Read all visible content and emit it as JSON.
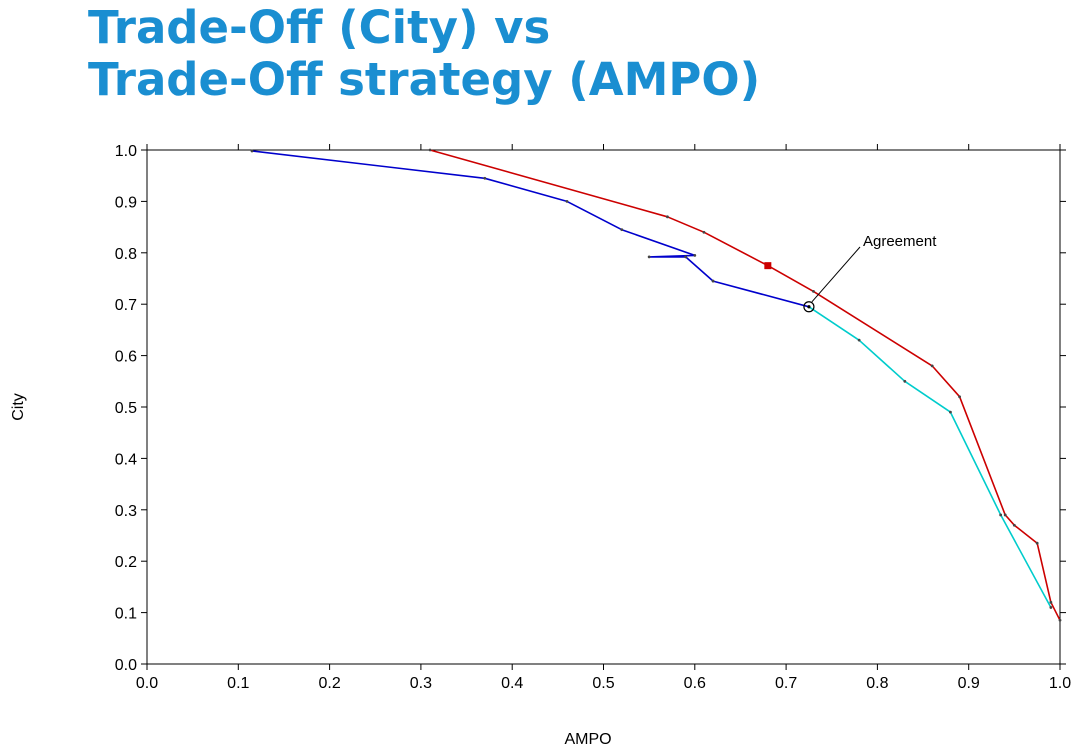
{
  "title_lines": [
    "Trade-Off (City) vs",
    "Trade-Off strategy (AMPO)"
  ],
  "chart_data": {
    "type": "line",
    "title": "",
    "xlabel": "AMPO",
    "ylabel": "City",
    "xlim": [
      0.0,
      1.0
    ],
    "ylim": [
      0.0,
      1.0
    ],
    "xticks": [
      "0.0",
      "0.1",
      "0.2",
      "0.3",
      "0.4",
      "0.5",
      "0.6",
      "0.7",
      "0.8",
      "0.9",
      "1.0"
    ],
    "yticks": [
      "0.0",
      "0.1",
      "0.2",
      "0.3",
      "0.4",
      "0.5",
      "0.6",
      "0.7",
      "0.8",
      "0.9",
      "1.0"
    ],
    "grid": false,
    "series": [
      {
        "color": "#cc0000",
        "points": [
          [
            0.31,
            1.0
          ],
          [
            0.57,
            0.87
          ],
          [
            0.61,
            0.84
          ],
          [
            0.68,
            0.775
          ],
          [
            0.73,
            0.725
          ],
          [
            0.86,
            0.58
          ],
          [
            0.89,
            0.52
          ],
          [
            0.94,
            0.29
          ],
          [
            0.95,
            0.27
          ],
          [
            0.975,
            0.235
          ],
          [
            0.99,
            0.12
          ],
          [
            1.0,
            0.085
          ]
        ]
      },
      {
        "color": "#0000cc",
        "points": [
          [
            0.115,
            0.998
          ],
          [
            0.37,
            0.945
          ],
          [
            0.46,
            0.9
          ],
          [
            0.52,
            0.845
          ],
          [
            0.6,
            0.795
          ],
          [
            0.55,
            0.792
          ],
          [
            0.59,
            0.792
          ],
          [
            0.62,
            0.745
          ],
          [
            0.725,
            0.695
          ]
        ]
      },
      {
        "color": "#00cccc",
        "points": [
          [
            0.725,
            0.695
          ],
          [
            0.78,
            0.63
          ],
          [
            0.83,
            0.55
          ],
          [
            0.88,
            0.49
          ],
          [
            0.935,
            0.29
          ],
          [
            0.99,
            0.11
          ]
        ]
      }
    ],
    "annotations": [
      {
        "text": "Agreement",
        "x": 0.725,
        "y": 0.695
      }
    ]
  }
}
